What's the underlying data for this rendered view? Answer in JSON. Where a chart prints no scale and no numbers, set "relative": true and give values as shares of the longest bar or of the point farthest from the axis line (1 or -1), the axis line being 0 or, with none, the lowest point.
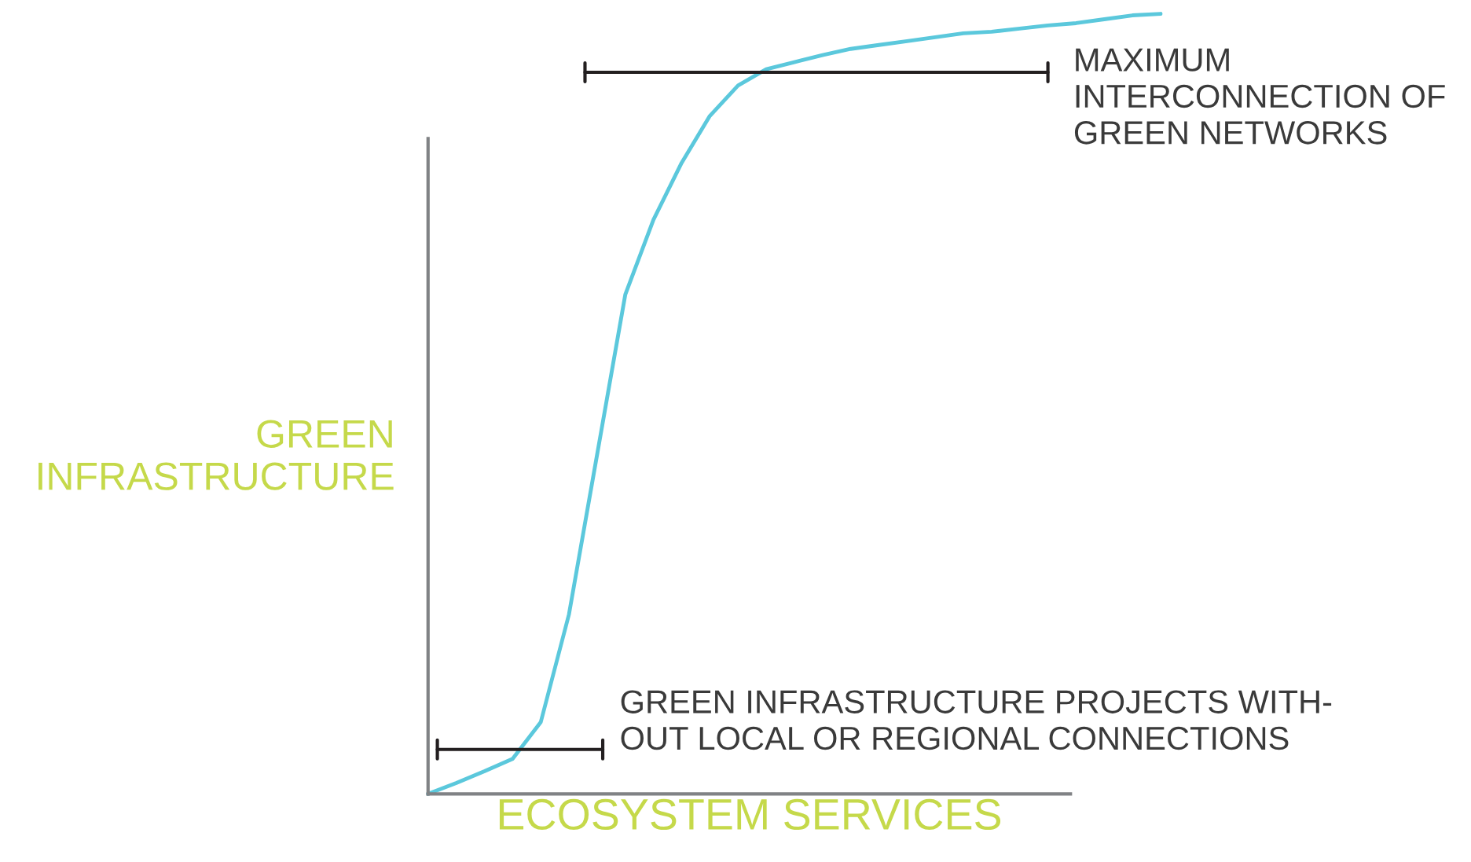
{
  "chart_data": {
    "type": "line",
    "relative": true,
    "categories": [
      null,
      null,
      null,
      null,
      null,
      null,
      null,
      null,
      null,
      null,
      null,
      null,
      null,
      null,
      null,
      null,
      null,
      null,
      null,
      null,
      null,
      null,
      null,
      null,
      null,
      null,
      null
    ],
    "series": [
      {
        "color": "#5bc8dc",
        "values": [
          0,
          0.014,
          0.029,
          0.045,
          0.092,
          0.23,
          0.435,
          0.64,
          0.736,
          0.809,
          0.869,
          0.908,
          0.929,
          0.938,
          0.947,
          0.955,
          0.96,
          0.965,
          0.97,
          0.975,
          0.977,
          0.981,
          0.985,
          0.988,
          0.993,
          0.998,
          1
        ]
      }
    ],
    "xlabel": "ECOSYSTEM SERVICES",
    "ylabel": "GREEN\nINFRASTRUCTURE",
    "annotations": [
      "MAXIMUM\nINTERCONNECTION OF\nGREEN NETWORKS",
      "GREEN INFRASTRUCTURE PROJECTS WITH-\nOUT LOCAL OR REGIONAL CONNECTIONS"
    ]
  }
}
